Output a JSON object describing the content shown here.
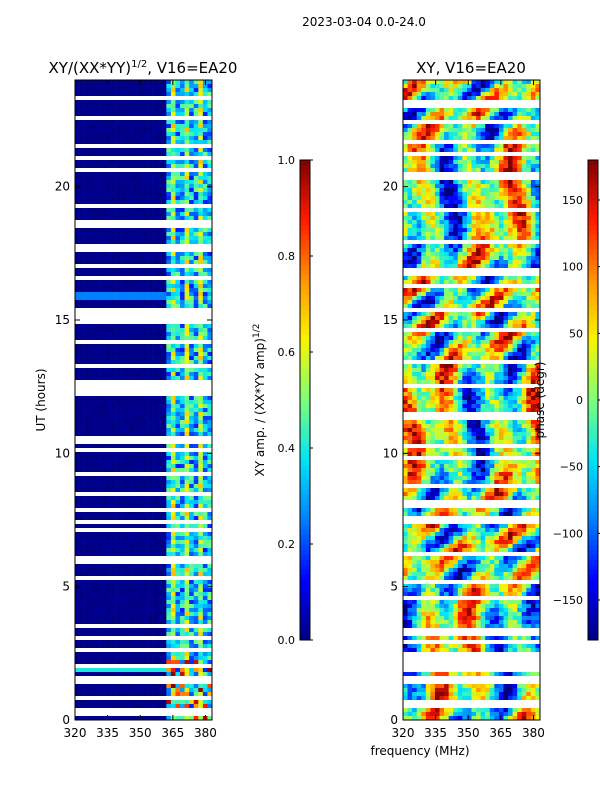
{
  "figure_title": "2023-03-04 0.0-24.0",
  "colormap": [
    "#00007f",
    "#0000ff",
    "#0080ff",
    "#00e5f8",
    "#7dff7a",
    "#f8f500",
    "#ff9400",
    "#ff1a00",
    "#7f0000"
  ],
  "chart_data": [
    {
      "type": "heatmap",
      "title": "XY/(XX*YY)^1/2, V16=EA20",
      "title_main": "XY/(XX*YY)",
      "title_sup": "1/2",
      "title_tail": ", V16=EA20",
      "xlabel": "",
      "ylabel": "UT (hours)",
      "xlim": [
        320,
        383
      ],
      "ylim": [
        0,
        24
      ],
      "xticks": [
        320,
        335,
        350,
        365,
        380
      ],
      "yticks": [
        0,
        5,
        10,
        15,
        20
      ],
      "value_range": [
        0.0,
        1.0
      ],
      "colorbar": {
        "label_main": "XY amp. / (XX*YY amp)",
        "label_sup": "1/2",
        "range": [
          0.0,
          1.0
        ],
        "ticks": [
          "0.0",
          "0.2",
          "0.4",
          "0.6",
          "0.8",
          "1.0"
        ]
      },
      "bright_channel_band_mhz": [
        361,
        382
      ],
      "flagged_hours": [
        0.3,
        0.8,
        1.4,
        1.6,
        2.0,
        2.6,
        3.1,
        3.5,
        5.3,
        6.0,
        7.1,
        7.4,
        7.9,
        8.5,
        9.2,
        10.1,
        10.5,
        12.3,
        12.6,
        13.3,
        14.2,
        15.0,
        15.3,
        16.6,
        17.0,
        17.7,
        18.6,
        19.3,
        20.6,
        21.1,
        21.5,
        22.6,
        23.3
      ]
    },
    {
      "type": "heatmap",
      "title": "XY, V16=EA20",
      "xlabel": "frequency (MHz)",
      "ylabel": "",
      "xlim": [
        320,
        383
      ],
      "ylim": [
        0,
        24
      ],
      "xticks": [
        320,
        335,
        350,
        365,
        380
      ],
      "yticks": [
        0,
        5,
        10,
        15,
        20
      ],
      "value_range": [
        -180,
        180
      ],
      "colorbar": {
        "label": "phase (degr)",
        "range": [
          -180,
          180
        ],
        "ticks": [
          "−150",
          "−100",
          "−50",
          "0",
          "50",
          "100",
          "150"
        ]
      },
      "flagged_hours": [
        0.6,
        1.5,
        1.9,
        2.1,
        2.4,
        2.9,
        3.3,
        4.6,
        5.2,
        6.2,
        7.5,
        8.1,
        8.8,
        9.8,
        10.3,
        11.4,
        12.5,
        13.4,
        14.6,
        15.4,
        16.3,
        16.8,
        17.9,
        19.1,
        20.4,
        21.2,
        21.7,
        22.4,
        23.1
      ]
    }
  ]
}
